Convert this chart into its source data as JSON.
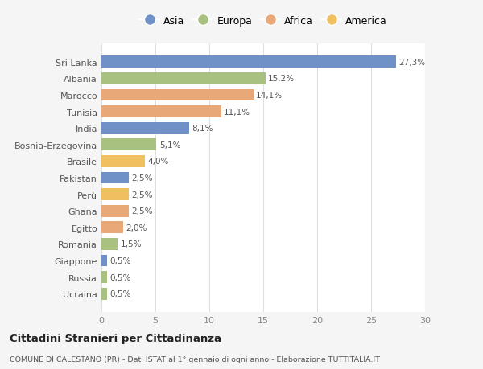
{
  "countries": [
    "Sri Lanka",
    "Albania",
    "Marocco",
    "Tunisia",
    "India",
    "Bosnia-Erzegovina",
    "Brasile",
    "Pakistan",
    "Perù",
    "Ghana",
    "Egitto",
    "Romania",
    "Giappone",
    "Russia",
    "Ucraina"
  ],
  "values": [
    27.3,
    15.2,
    14.1,
    11.1,
    8.1,
    5.1,
    4.0,
    2.5,
    2.5,
    2.5,
    2.0,
    1.5,
    0.5,
    0.5,
    0.5
  ],
  "labels": [
    "27,3%",
    "15,2%",
    "14,1%",
    "11,1%",
    "8,1%",
    "5,1%",
    "4,0%",
    "2,5%",
    "2,5%",
    "2,5%",
    "2,0%",
    "1,5%",
    "0,5%",
    "0,5%",
    "0,5%"
  ],
  "continents": [
    "Asia",
    "Europa",
    "Africa",
    "Africa",
    "Asia",
    "Europa",
    "America",
    "Asia",
    "America",
    "Africa",
    "Africa",
    "Europa",
    "Asia",
    "Europa",
    "Europa"
  ],
  "colors": {
    "Asia": "#7090C8",
    "Europa": "#A8C080",
    "Africa": "#E8A878",
    "America": "#F0C060"
  },
  "legend_order": [
    "Asia",
    "Europa",
    "Africa",
    "America"
  ],
  "xlim": [
    0,
    30
  ],
  "xticks": [
    0,
    5,
    10,
    15,
    20,
    25,
    30
  ],
  "title": "Cittadini Stranieri per Cittadinanza",
  "subtitle": "COMUNE DI CALESTANO (PR) - Dati ISTAT al 1° gennaio di ogni anno - Elaborazione TUTTITALIA.IT",
  "bg_color": "#f5f5f5",
  "plot_bg_color": "#ffffff",
  "grid_color": "#e0e0e0"
}
